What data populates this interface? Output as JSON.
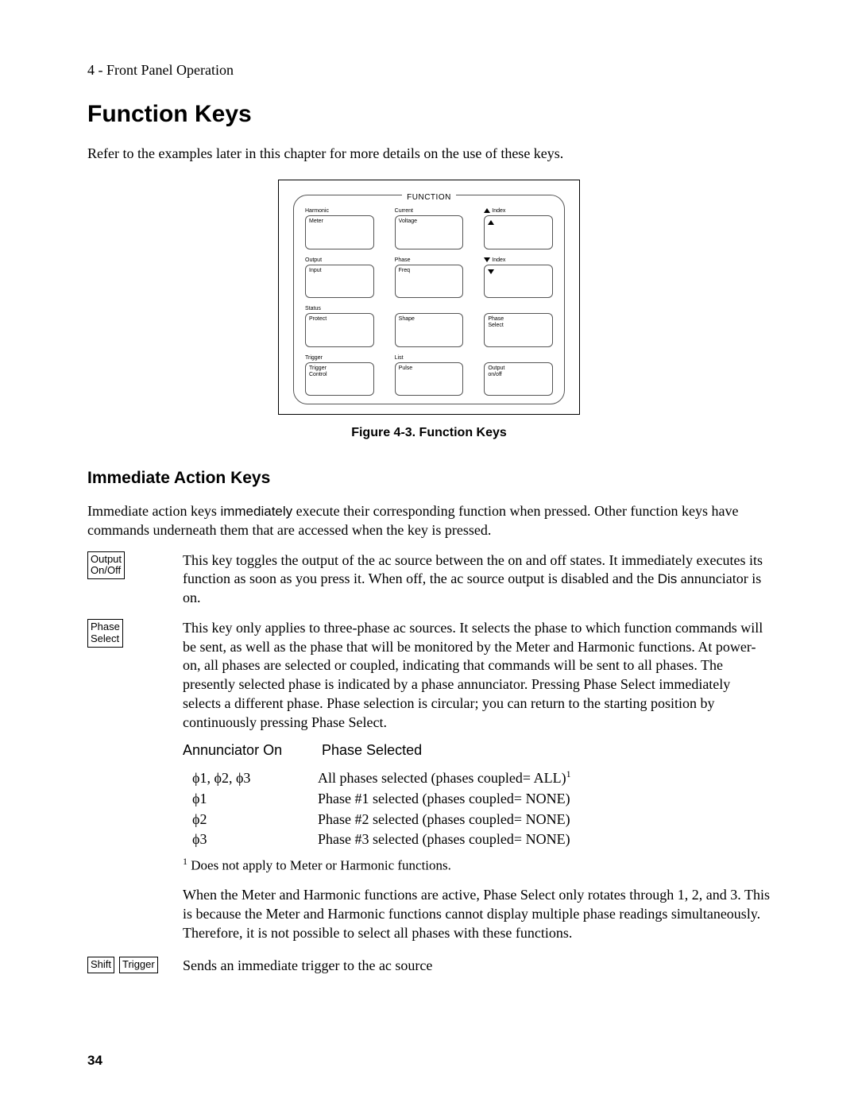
{
  "breadcrumb": "4 - Front Panel Operation",
  "h1": "Function Keys",
  "intro": "Refer to the examples later in this chapter for more details on the use of these keys.",
  "figure": {
    "panel_label": "FUNCTION",
    "keys": [
      {
        "above": "Harmonic",
        "inside": "Meter"
      },
      {
        "above": "Current",
        "inside": "Voltage"
      },
      {
        "above_icon": "up",
        "above_text": "Index",
        "inside_icon": "up"
      },
      {
        "above": "Output",
        "inside": "Input"
      },
      {
        "above": "Phase",
        "inside": "Freq"
      },
      {
        "above_icon": "down",
        "above_text": "Index",
        "inside_icon": "down"
      },
      {
        "above": "Status",
        "inside": "Protect"
      },
      {
        "above": "",
        "inside": "Shape"
      },
      {
        "above": "",
        "inside": "Phase\nSelect"
      },
      {
        "above": "Trigger",
        "inside": "Trigger\nControl"
      },
      {
        "above": "List",
        "inside": "Pulse"
      },
      {
        "above": "",
        "inside": "Output\non/off"
      }
    ],
    "caption": "Figure 4-3. Function Keys"
  },
  "h2": "Immediate Action Keys",
  "immediate_intro_1": "Immediate action keys ",
  "immediate_intro_sans": "immediately",
  "immediate_intro_2": " execute their corresponding function when pressed. Other function keys have commands underneath them that are accessed when the key is pressed.",
  "output_key": {
    "label_line1": "Output",
    "label_line2": "On/Off",
    "desc_1": "This key toggles the output of the ac source between the on and off states. It immediately executes its function as soon as you press it. When off, the ac source output is disabled and the ",
    "desc_dis": "Dis",
    "desc_2": " annunciator is on."
  },
  "phase_key": {
    "label_line1": "Phase",
    "label_line2": "Select",
    "desc": "This key only applies to three-phase ac sources. It selects the phase to which function commands will be sent, as well as the phase that will be monitored by the Meter and Harmonic functions. At power-on, all phases are selected or coupled, indicating that commands will be sent to all phases. The presently selected phase is indicated by a phase annunciator. Pressing Phase Select immediately selects a different phase. Phase selection is circular; you can return to the starting position by continuously pressing Phase Select.",
    "table_head_a": "Annunciator On",
    "table_head_b": "Phase Selected",
    "rows": [
      {
        "a": "ϕ1, ϕ2, ϕ3",
        "b": "All phases selected (phases coupled= ALL)",
        "sup": "1"
      },
      {
        "a": "ϕ1",
        "b": "Phase #1 selected (phases coupled= NONE)"
      },
      {
        "a": "ϕ2",
        "b": "Phase #2 selected (phases coupled= NONE)"
      },
      {
        "a": "ϕ3",
        "b": "Phase #3 selected (phases coupled= NONE)"
      }
    ],
    "footnote_sup": "1",
    "footnote": " Does not apply to Meter or Harmonic functions.",
    "para2": "When the Meter and Harmonic functions are active, Phase Select only rotates through 1, 2, and 3. This is because the Meter and Harmonic functions cannot display multiple phase readings simultaneously. Therefore, it is not possible to select all phases with these functions."
  },
  "trigger_key": {
    "label1": "Shift",
    "label2": "Trigger",
    "desc": "Sends an immediate trigger to the ac source"
  },
  "page_num": "34"
}
